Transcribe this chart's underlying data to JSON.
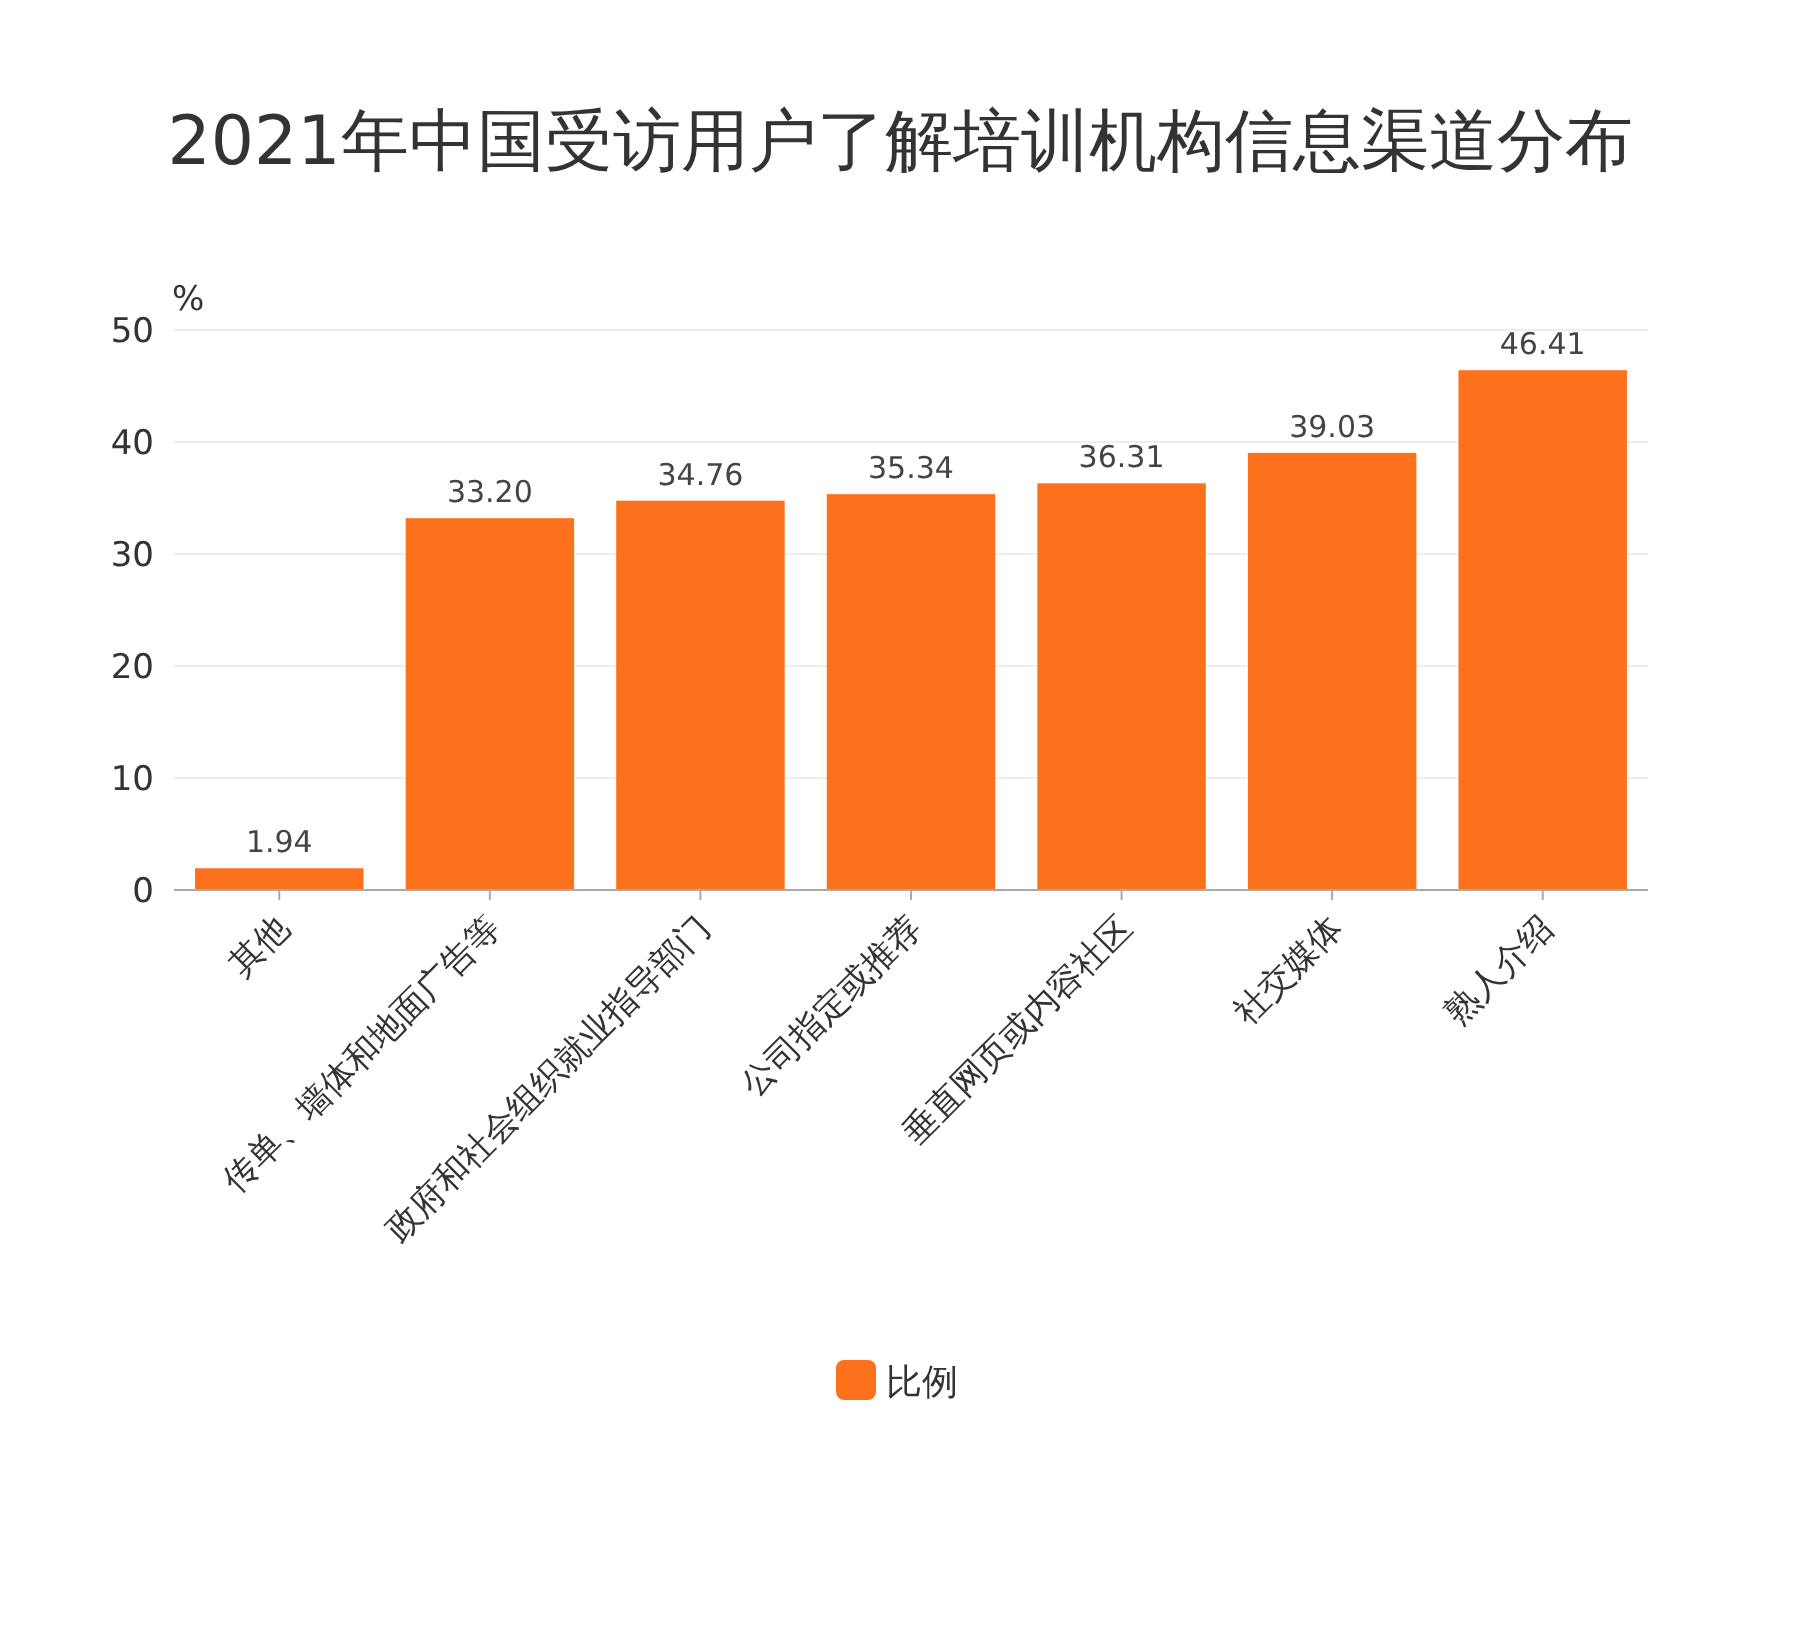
{
  "chart_data": {
    "type": "bar",
    "title": "2021年中国受访用户了解培训机构信息渠道分布",
    "ylabel": "%",
    "categories": [
      "其他",
      "传单、墙体和地面广告等",
      "政府和社会组织就业指导部门",
      "公司指定或推荐",
      "垂直网页或内容社区",
      "社交媒体",
      "熟人介绍"
    ],
    "series": [
      {
        "name": "比例",
        "color": "#fc711c",
        "values": [
          1.94,
          33.2,
          34.76,
          35.34,
          36.31,
          39.03,
          46.41
        ]
      }
    ],
    "value_labels": [
      "1.94",
      "33.20",
      "34.76",
      "35.34",
      "36.31",
      "39.03",
      "46.41"
    ],
    "ylim": [
      0,
      50
    ],
    "yticks": [
      0,
      10,
      20,
      30,
      40,
      50
    ],
    "grid": "y",
    "legend": "bottom"
  }
}
